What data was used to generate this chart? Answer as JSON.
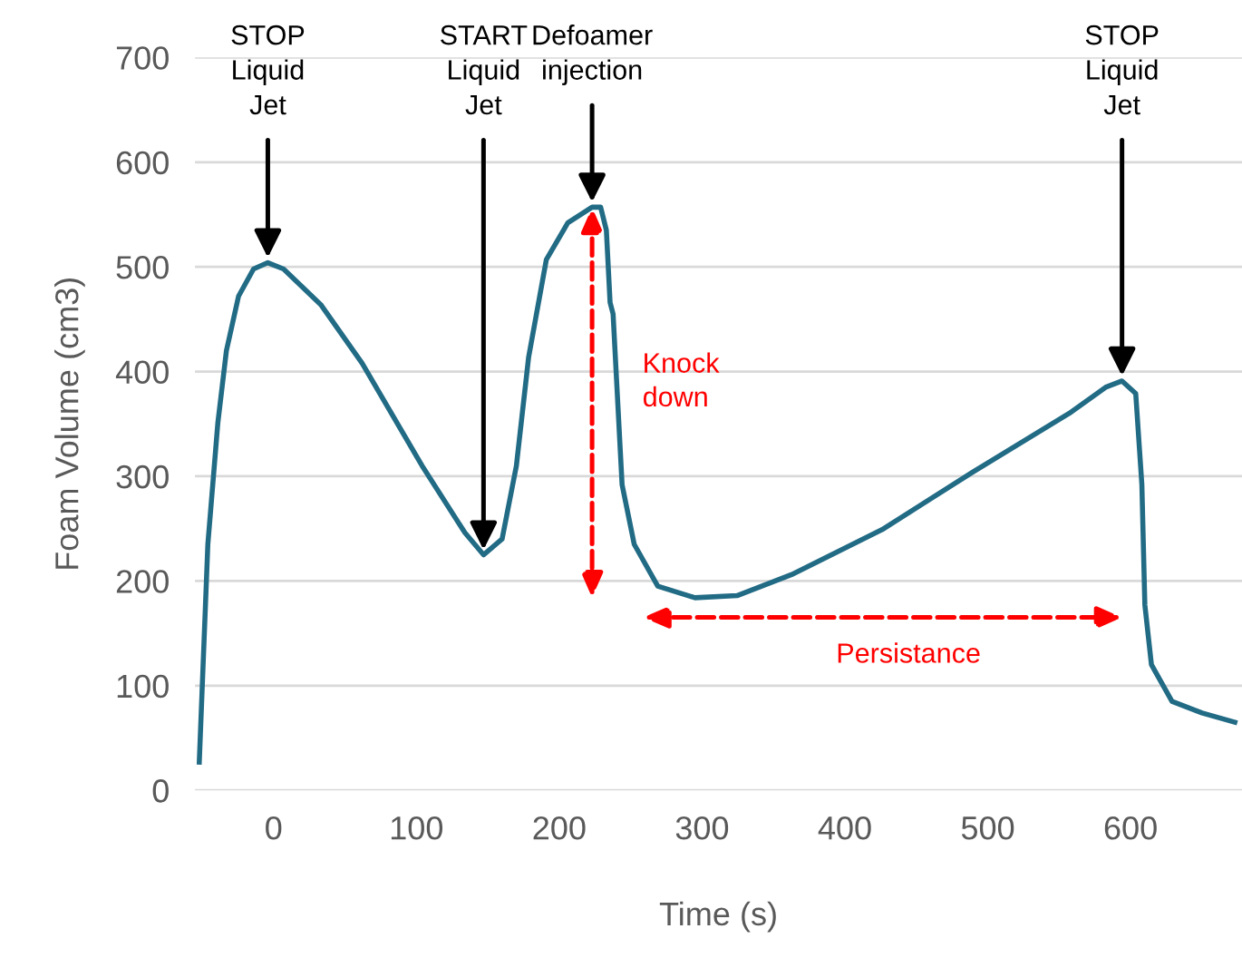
{
  "chart_data": {
    "type": "line",
    "xlabel": "Time (s)",
    "ylabel": "Foam Volume (cm3)",
    "xlim": [
      -55,
      678
    ],
    "xticks": [
      0,
      100,
      200,
      300,
      400,
      500,
      600
    ],
    "ylim": [
      0,
      700
    ],
    "yticks": [
      0,
      100,
      200,
      300,
      400,
      500,
      600,
      700
    ],
    "grid": "y",
    "legend": false,
    "marker": "none",
    "line_style": "solid",
    "series": [
      {
        "color": "#226b85",
        "x": [
          -52,
          -46,
          -39,
          -33,
          -24.5,
          -14,
          -4,
          7,
          33,
          62,
          104,
          134,
          147,
          160,
          170,
          178.6,
          191,
          206,
          223,
          229,
          233,
          235.6,
          237.7,
          244,
          252.5,
          269,
          295,
          324.5,
          362.6,
          426,
          489.5,
          557,
          582.5,
          594,
          603.6,
          607.9,
          610,
          614.6,
          629,
          650,
          673
        ],
        "values": [
          27,
          235,
          351,
          420,
          472,
          498,
          504,
          498,
          464,
          408,
          310,
          246,
          225,
          240,
          310,
          414,
          507,
          542,
          557,
          557,
          535,
          466,
          455,
          292,
          235,
          195,
          184,
          186,
          206,
          249,
          304,
          360,
          385,
          391,
          379,
          292,
          177,
          120,
          85,
          74,
          65
        ]
      }
    ],
    "annotations": [
      {
        "text": "STOP\nLiquid\nJet",
        "x": -4,
        "y": 504
      },
      {
        "text": "START\nLiquid\nJet",
        "x": 147,
        "y": 225
      },
      {
        "text": "Defoamer\ninjection",
        "x": 223,
        "y": 557
      },
      {
        "text": "STOP\nLiquid\nJet",
        "x": 594,
        "y": 391
      },
      "Knock\ndown",
      "Persistance"
    ]
  }
}
